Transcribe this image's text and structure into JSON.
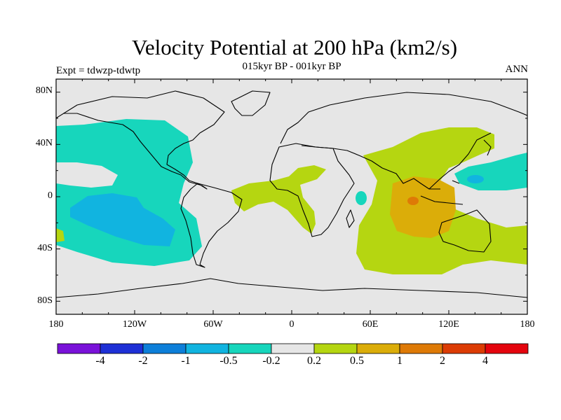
{
  "header": {
    "title": "Velocity Potential at 200 hPa (km2/s)",
    "subtitle": "015kyr BP - 001kyr BP",
    "left_label": "Expt = tdwzp-tdwtp",
    "right_label": "ANN"
  },
  "axes": {
    "y_ticks": [
      "80N",
      "40N",
      "0",
      "40S",
      "80S"
    ],
    "x_ticks": [
      "180",
      "120W",
      "60W",
      "0",
      "60E",
      "120E",
      "180"
    ]
  },
  "colorbar": {
    "labels": [
      "-4",
      "-2",
      "-1",
      "-0.5",
      "-0.2",
      "0.2",
      "0.5",
      "1",
      "2",
      "4"
    ],
    "colors": [
      "#7a12d9",
      "#1e30d6",
      "#0d7fd9",
      "#11b4e0",
      "#17d6bc",
      "#e6e6e6",
      "#b5d611",
      "#dbad09",
      "#de7a06",
      "#dc3c04",
      "#e4040e"
    ]
  },
  "colors": {
    "background": "#e6e6e6",
    "negative_weak": "#17d6bc",
    "negative_mid": "#11b4e0",
    "positive_weak": "#b5d611",
    "positive_mid": "#dbad09",
    "positive_strong": "#de7a06"
  }
}
